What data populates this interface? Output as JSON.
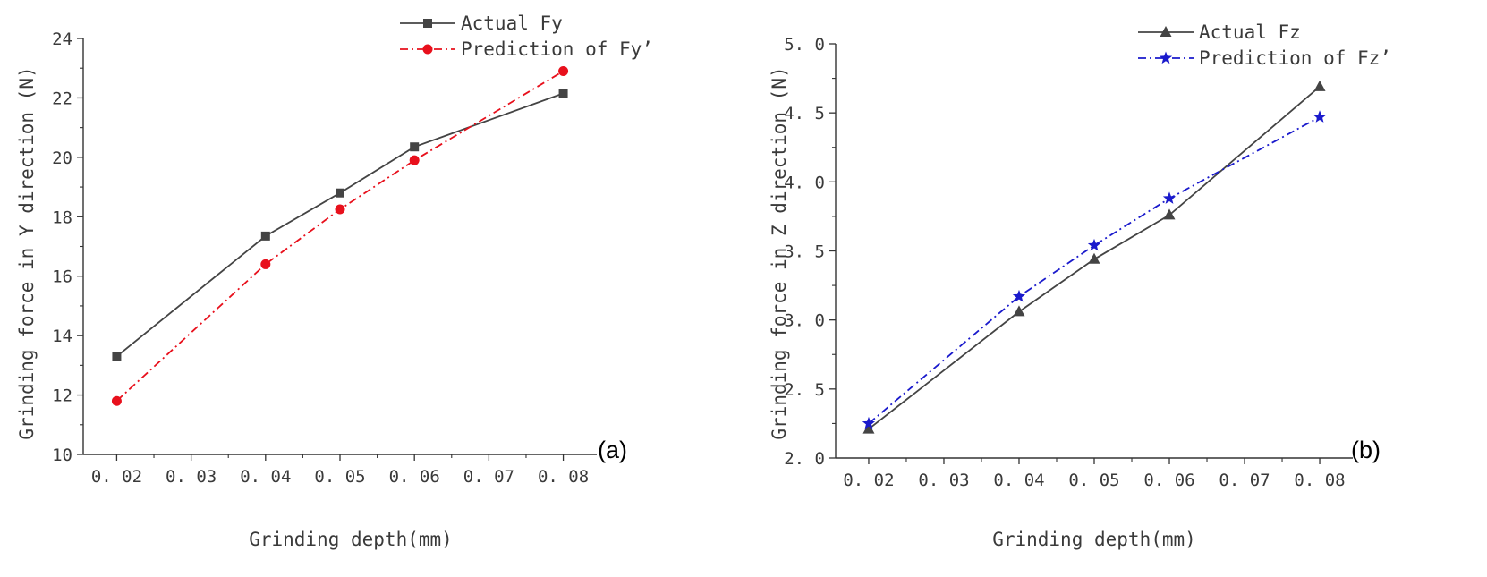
{
  "chart_data": [
    {
      "type": "line",
      "panel_label": "(a)",
      "xlabel": "Grinding depth(mm)",
      "ylabel": "Grinding force in Y direction (N)",
      "x_ticks": [
        0.02,
        0.03,
        0.04,
        0.05,
        0.06,
        0.07,
        0.08
      ],
      "x_tick_labels": [
        "0. 02",
        "0. 03",
        "0. 04",
        "0. 05",
        "0. 06",
        "0. 07",
        "0. 08"
      ],
      "xlim": [
        0.0155,
        0.0845
      ],
      "y_ticks": [
        10,
        12,
        14,
        16,
        18,
        20,
        22,
        24
      ],
      "y_tick_labels": [
        "10",
        "12",
        "14",
        "16",
        "18",
        "20",
        "22",
        "24"
      ],
      "ylim": [
        10,
        24
      ],
      "x": [
        0.02,
        0.04,
        0.05,
        0.06,
        0.08
      ],
      "series": [
        {
          "name": "Actual Fy",
          "values": [
            13.3,
            17.35,
            18.8,
            20.35,
            22.15
          ],
          "color": "#444444",
          "marker": "square",
          "dash": "solid"
        },
        {
          "name": "Prediction of Fy’",
          "values": [
            11.8,
            16.4,
            18.25,
            19.9,
            22.9
          ],
          "color": "#e8101c",
          "marker": "circle",
          "dash": "dashdot"
        }
      ],
      "legend": "top-right"
    },
    {
      "type": "line",
      "panel_label": "(b)",
      "xlabel": "Grinding depth(mm)",
      "ylabel": "Grinding force in Z direction (N)",
      "x_ticks": [
        0.02,
        0.03,
        0.04,
        0.05,
        0.06,
        0.07,
        0.08
      ],
      "x_tick_labels": [
        "0. 02",
        "0. 03",
        "0. 04",
        "0. 05",
        "0. 06",
        "0. 07",
        "0. 08"
      ],
      "xlim": [
        0.0156,
        0.0844
      ],
      "y_ticks": [
        2.0,
        2.5,
        3.0,
        3.5,
        4.0,
        4.5,
        5.0
      ],
      "y_tick_labels": [
        "2. 0",
        "2. 5",
        "3. 0",
        "3. 5",
        "4. 0",
        "4. 5",
        "5. 0"
      ],
      "ylim": [
        2.0,
        5.0
      ],
      "x": [
        0.02,
        0.04,
        0.05,
        0.06,
        0.08
      ],
      "series": [
        {
          "name": "Actual Fz",
          "values": [
            2.21,
            3.06,
            3.44,
            3.76,
            4.69
          ],
          "color": "#444444",
          "marker": "triangle",
          "dash": "solid"
        },
        {
          "name": "Prediction of Fz’",
          "values": [
            2.25,
            3.17,
            3.54,
            3.88,
            4.47
          ],
          "color": "#1a1acc",
          "marker": "star",
          "dash": "dashdot"
        }
      ],
      "legend": "top-right"
    }
  ]
}
